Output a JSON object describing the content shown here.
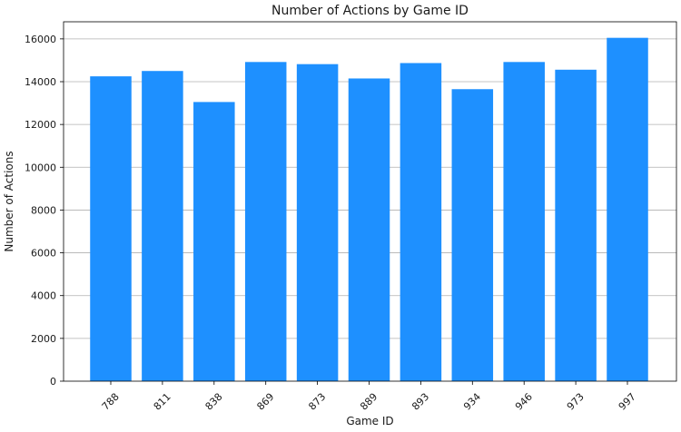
{
  "chart_data": {
    "type": "bar",
    "title": "Number of Actions by Game ID",
    "xlabel": "Game ID",
    "ylabel": "Number of Actions",
    "categories": [
      "788",
      "811",
      "838",
      "869",
      "873",
      "889",
      "893",
      "934",
      "946",
      "973",
      "997"
    ],
    "values": [
      14250,
      14500,
      13050,
      14920,
      14820,
      14150,
      14870,
      13650,
      14920,
      14560,
      16050
    ],
    "ylim": [
      0,
      16800
    ],
    "yticks": [
      0,
      2000,
      4000,
      6000,
      8000,
      10000,
      12000,
      14000,
      16000
    ],
    "ytick_labels": [
      "0",
      "2000",
      "4000",
      "6000",
      "8000",
      "10000",
      "12000",
      "14000",
      "16000"
    ],
    "grid": "y",
    "bar_color": "#1e90ff",
    "xtick_rotation": 45
  }
}
